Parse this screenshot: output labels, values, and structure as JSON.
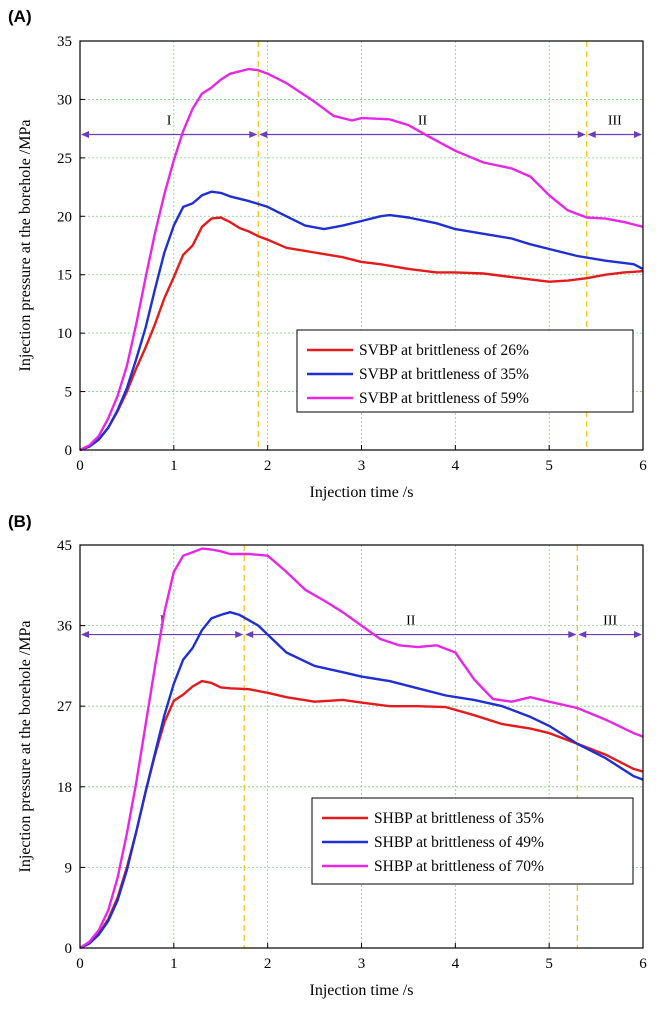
{
  "chart_data": [
    {
      "type": "line",
      "panel": "(A)",
      "xlabel": "Injection time /s",
      "ylabel": "Injection pressure at the borehole /MPa",
      "xlim": [
        0,
        6
      ],
      "ylim": [
        0,
        35
      ],
      "xticks": [
        0,
        1,
        2,
        3,
        4,
        5,
        6
      ],
      "yticks": [
        0,
        5,
        10,
        15,
        20,
        25,
        30,
        35
      ],
      "grid": true,
      "legend_position": "lower-right",
      "stage_boundaries": [
        1.9,
        5.4
      ],
      "stage_arrow_y": 27,
      "stages": [
        {
          "label": "I",
          "from": 0,
          "to": 1.9
        },
        {
          "label": "II",
          "from": 1.9,
          "to": 5.4
        },
        {
          "label": "III",
          "from": 5.4,
          "to": 6
        }
      ],
      "series": [
        {
          "name": "SVBP at brittleness of 26%",
          "color": "#e41a1c",
          "x": [
            0,
            0.1,
            0.2,
            0.3,
            0.4,
            0.5,
            0.6,
            0.7,
            0.8,
            0.9,
            1.0,
            1.1,
            1.2,
            1.3,
            1.4,
            1.5,
            1.6,
            1.7,
            1.8,
            1.9,
            2.0,
            2.2,
            2.5,
            2.8,
            3.0,
            3.2,
            3.5,
            3.8,
            4.0,
            4.3,
            4.6,
            4.8,
            5.0,
            5.2,
            5.4,
            5.6,
            5.8,
            6.0
          ],
          "y": [
            0,
            0.3,
            0.9,
            1.9,
            3.3,
            5.0,
            7.0,
            8.8,
            10.8,
            13.0,
            14.8,
            16.7,
            17.5,
            19.1,
            19.8,
            19.9,
            19.5,
            19.0,
            18.7,
            18.3,
            18.0,
            17.3,
            16.9,
            16.5,
            16.1,
            15.9,
            15.5,
            15.2,
            15.2,
            15.1,
            14.8,
            14.6,
            14.4,
            14.5,
            14.7,
            15.0,
            15.2,
            15.3
          ]
        },
        {
          "name": "SVBP at brittleness of 35%",
          "color": "#1f2fd1",
          "x": [
            0,
            0.1,
            0.2,
            0.3,
            0.4,
            0.5,
            0.6,
            0.7,
            0.8,
            0.9,
            1.0,
            1.1,
            1.2,
            1.3,
            1.4,
            1.5,
            1.6,
            1.8,
            2.0,
            2.2,
            2.4,
            2.6,
            2.8,
            3.0,
            3.2,
            3.3,
            3.5,
            3.8,
            4.0,
            4.3,
            4.6,
            4.8,
            5.0,
            5.3,
            5.6,
            5.9,
            6.0
          ],
          "y": [
            0,
            0.3,
            0.9,
            1.9,
            3.4,
            5.3,
            7.8,
            10.5,
            13.8,
            16.9,
            19.2,
            20.8,
            21.1,
            21.8,
            22.1,
            22.0,
            21.7,
            21.3,
            20.8,
            20.0,
            19.2,
            18.9,
            19.2,
            19.6,
            20.0,
            20.1,
            19.9,
            19.4,
            18.9,
            18.5,
            18.1,
            17.6,
            17.2,
            16.6,
            16.2,
            15.9,
            15.5
          ]
        },
        {
          "name": "SVBP at brittleness of 59%",
          "color": "#e628e6",
          "x": [
            0,
            0.1,
            0.2,
            0.3,
            0.4,
            0.5,
            0.6,
            0.7,
            0.8,
            0.9,
            1.0,
            1.1,
            1.2,
            1.3,
            1.4,
            1.5,
            1.6,
            1.7,
            1.8,
            1.9,
            2.0,
            2.2,
            2.5,
            2.7,
            2.9,
            3.0,
            3.3,
            3.5,
            3.7,
            4.0,
            4.3,
            4.6,
            4.8,
            5.0,
            5.2,
            5.4,
            5.6,
            5.8,
            6.0
          ],
          "y": [
            0,
            0.4,
            1.2,
            2.7,
            4.6,
            7.2,
            10.8,
            14.8,
            18.6,
            21.9,
            24.8,
            27.3,
            29.2,
            30.5,
            31.0,
            31.7,
            32.2,
            32.4,
            32.6,
            32.5,
            32.2,
            31.4,
            29.8,
            28.6,
            28.2,
            28.4,
            28.3,
            27.8,
            26.9,
            25.6,
            24.6,
            24.1,
            23.4,
            21.8,
            20.5,
            19.9,
            19.8,
            19.5,
            19.1
          ]
        }
      ]
    },
    {
      "type": "line",
      "panel": "(B)",
      "xlabel": "Injection time /s",
      "ylabel": "Injection pressure at the borehole /MPa",
      "xlim": [
        0,
        6
      ],
      "ylim": [
        0,
        45
      ],
      "xticks": [
        0,
        1,
        2,
        3,
        4,
        5,
        6
      ],
      "yticks": [
        0,
        9,
        18,
        27,
        36,
        45
      ],
      "grid": true,
      "legend_position": "lower-right",
      "stage_boundaries": [
        1.75,
        5.3
      ],
      "stage_arrow_y": 35,
      "stages": [
        {
          "label": "I",
          "from": 0,
          "to": 1.75
        },
        {
          "label": "II",
          "from": 1.75,
          "to": 5.3
        },
        {
          "label": "III",
          "from": 5.3,
          "to": 6
        }
      ],
      "series": [
        {
          "name": "SHBP at brittleness of 35%",
          "color": "#e41a1c",
          "x": [
            0,
            0.1,
            0.2,
            0.3,
            0.4,
            0.5,
            0.6,
            0.7,
            0.8,
            0.9,
            1.0,
            1.1,
            1.2,
            1.3,
            1.4,
            1.5,
            1.6,
            1.8,
            2.0,
            2.2,
            2.5,
            2.8,
            3.0,
            3.3,
            3.6,
            3.9,
            4.2,
            4.5,
            4.8,
            5.0,
            5.3,
            5.6,
            5.9,
            6.0
          ],
          "y": [
            0,
            0.6,
            1.6,
            3.2,
            5.6,
            9.0,
            13.0,
            17.5,
            21.6,
            25.2,
            27.6,
            28.3,
            29.2,
            29.8,
            29.6,
            29.1,
            29.0,
            28.9,
            28.5,
            28.0,
            27.5,
            27.7,
            27.4,
            27.0,
            27.0,
            26.9,
            26.0,
            25.0,
            24.5,
            24.0,
            22.8,
            21.6,
            20.0,
            19.7
          ]
        },
        {
          "name": "SHBP at brittleness of 49%",
          "color": "#1f2fd1",
          "x": [
            0,
            0.1,
            0.2,
            0.3,
            0.4,
            0.5,
            0.6,
            0.7,
            0.8,
            0.9,
            1.0,
            1.1,
            1.2,
            1.3,
            1.4,
            1.5,
            1.6,
            1.7,
            1.8,
            1.9,
            2.0,
            2.2,
            2.5,
            2.8,
            3.0,
            3.3,
            3.6,
            3.9,
            4.2,
            4.5,
            4.8,
            5.0,
            5.3,
            5.6,
            5.9,
            6.0
          ],
          "y": [
            0,
            0.5,
            1.5,
            3.0,
            5.3,
            8.7,
            13.0,
            17.5,
            21.8,
            26.0,
            29.5,
            32.2,
            33.5,
            35.5,
            36.8,
            37.2,
            37.5,
            37.2,
            36.6,
            36.0,
            35.0,
            33.0,
            31.5,
            30.8,
            30.3,
            29.8,
            29.0,
            28.2,
            27.7,
            27.0,
            25.8,
            24.8,
            22.8,
            21.2,
            19.2,
            18.8
          ]
        },
        {
          "name": "SHBP at brittleness of 70%",
          "color": "#e628e6",
          "x": [
            0,
            0.1,
            0.2,
            0.3,
            0.4,
            0.5,
            0.6,
            0.7,
            0.8,
            0.9,
            1.0,
            1.1,
            1.2,
            1.3,
            1.4,
            1.5,
            1.6,
            1.8,
            2.0,
            2.2,
            2.4,
            2.6,
            2.8,
            3.0,
            3.2,
            3.4,
            3.6,
            3.8,
            4.0,
            4.2,
            4.4,
            4.6,
            4.8,
            5.0,
            5.3,
            5.6,
            5.9,
            6.0
          ],
          "y": [
            0,
            0.7,
            2.0,
            4.2,
            7.8,
            12.8,
            18.5,
            25.0,
            31.5,
            37.5,
            42.0,
            43.8,
            44.2,
            44.6,
            44.5,
            44.3,
            44.0,
            44.0,
            43.8,
            42.0,
            40.0,
            38.8,
            37.5,
            36.0,
            34.5,
            33.8,
            33.6,
            33.8,
            33.0,
            30.0,
            27.8,
            27.5,
            28.0,
            27.5,
            26.8,
            25.5,
            24.0,
            23.6
          ]
        }
      ]
    }
  ]
}
